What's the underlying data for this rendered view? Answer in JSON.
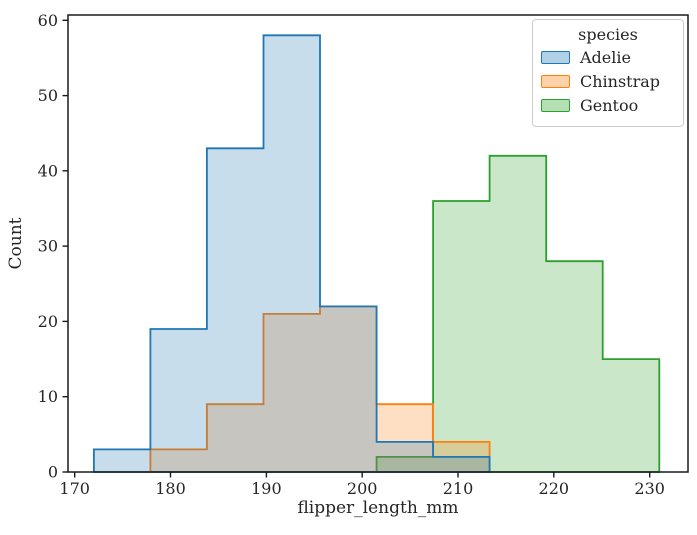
{
  "figure": {
    "background": "#ffffff",
    "text_color": "#262626",
    "spine_color": "#1a1a1a"
  },
  "chart_data": {
    "type": "histogram",
    "element": "step",
    "xlabel": "flipper_length_mm",
    "ylabel": "Count",
    "bin_edges": [
      172.0,
      177.9,
      183.8,
      189.7,
      195.6,
      201.5,
      207.4,
      213.3,
      219.2,
      225.1,
      231.0
    ],
    "series": [
      {
        "name": "Adelie",
        "color": "#1f77b4",
        "counts": [
          3,
          19,
          43,
          58,
          22,
          4,
          2,
          0,
          0,
          0
        ]
      },
      {
        "name": "Chinstrap",
        "color": "#ff7f0e",
        "counts": [
          0,
          3,
          9,
          21,
          22,
          9,
          4,
          0,
          0,
          0
        ]
      },
      {
        "name": "Gentoo",
        "color": "#2ca02c",
        "counts": [
          0,
          0,
          0,
          0,
          0,
          2,
          36,
          42,
          28,
          15
        ]
      }
    ],
    "draw_order": [
      2,
      1,
      0
    ],
    "fill_alpha": 0.25,
    "xlim": [
      169.3,
      234.0
    ],
    "ylim": [
      0,
      60.7
    ],
    "xticks": [
      170,
      180,
      190,
      200,
      210,
      220,
      230
    ],
    "yticks": [
      0,
      10,
      20,
      30,
      40,
      50,
      60
    ],
    "grid": false,
    "legend": {
      "title": "species",
      "position": "upper right"
    }
  }
}
